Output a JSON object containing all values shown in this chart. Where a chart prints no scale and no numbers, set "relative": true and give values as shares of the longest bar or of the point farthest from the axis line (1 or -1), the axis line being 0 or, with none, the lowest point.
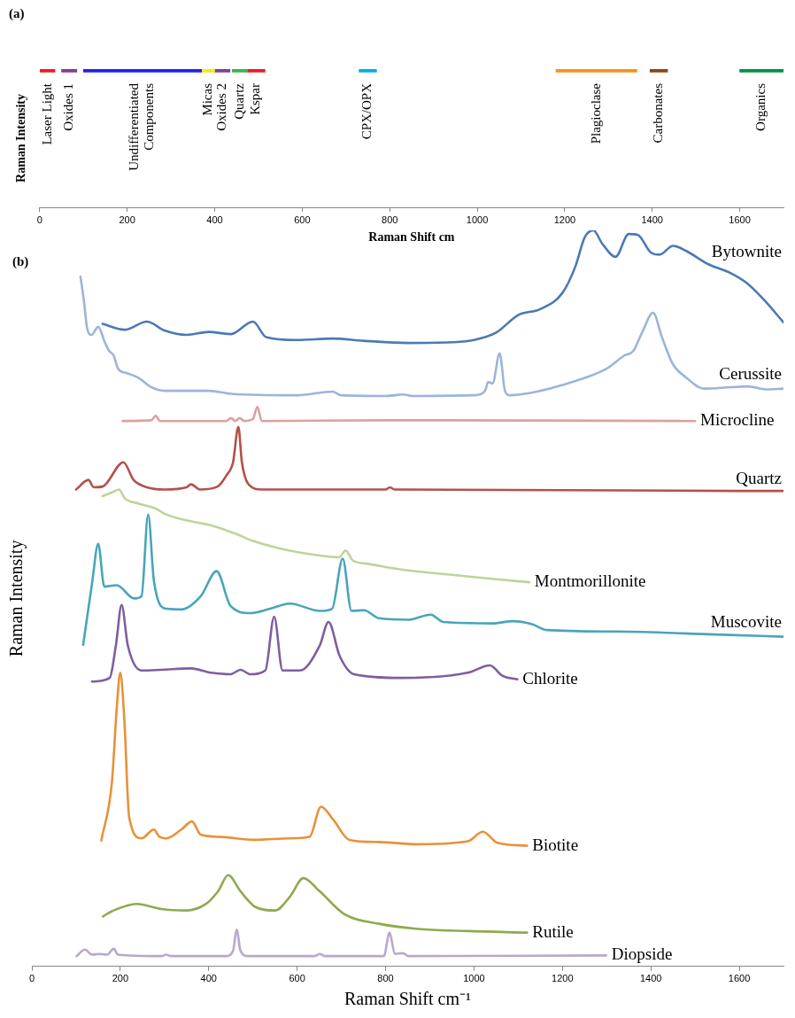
{
  "chart_data": [
    {
      "type": "bar",
      "orientation": "horizontal",
      "title": "(a)",
      "xlabel": "Raman Shift cm",
      "ylabel": "Raman Intensity",
      "xlim": [
        0,
        1700
      ],
      "xticks": [
        0,
        200,
        400,
        600,
        800,
        1000,
        1200,
        1400,
        1600
      ],
      "tick_labels": "x",
      "categories": [
        null
      ],
      "series": [
        {
          "name": "Laser Light",
          "color": "#ed1c24",
          "base": [
            0
          ],
          "values": [
            35
          ]
        },
        {
          "name": "Oxides 1",
          "color": "#7f3f98",
          "base": [
            50
          ],
          "values": [
            35
          ]
        },
        {
          "name": "Undifferentiated Components",
          "color": "#2121f0",
          "base": [
            100
          ],
          "values": [
            270
          ]
        },
        {
          "name": "Micas",
          "color": "#f7e811",
          "base": [
            370
          ],
          "values": [
            30
          ]
        },
        {
          "name": "Oxides 2",
          "color": "#7f3f98",
          "base": [
            400
          ],
          "values": [
            35
          ]
        },
        {
          "name": "Quartz",
          "color": "#39b54a",
          "base": [
            440
          ],
          "values": [
            35
          ]
        },
        {
          "name": "Kspar",
          "color": "#ed1c24",
          "base": [
            475
          ],
          "values": [
            40
          ]
        },
        {
          "name": "CPX/OPX",
          "color": "#00aeef",
          "base": [
            730
          ],
          "values": [
            40
          ]
        },
        {
          "name": "Plagioclase",
          "color": "#f7931e",
          "base": [
            1180
          ],
          "values": [
            185
          ]
        },
        {
          "name": "Carbonates",
          "color": "#8b4513",
          "base": [
            1395
          ],
          "values": [
            40
          ]
        },
        {
          "name": "Organics",
          "color": "#009245",
          "base": [
            1600
          ],
          "values": [
            100
          ]
        }
      ]
    },
    {
      "type": "line",
      "title": "(b)",
      "xlabel": "Raman Shift cm⁻¹",
      "ylabel": "Raman Intensity",
      "xlim": [
        0,
        1700
      ],
      "xticks": [
        0,
        200,
        400,
        600,
        800,
        1000,
        1200,
        1400,
        1600
      ],
      "relative": true,
      "series": [
        {
          "name": "Bytownite",
          "color": "#4a7ab5",
          "x": [
            160,
            210,
            260,
            300,
            350,
            400,
            450,
            500,
            530,
            600,
            680,
            750,
            850,
            950,
            1000,
            1050,
            1100,
            1150,
            1200,
            1230,
            1250,
            1270,
            1290,
            1320,
            1350,
            1370,
            1400,
            1420,
            1450,
            1480,
            1530,
            1580,
            1620,
            1660,
            1700
          ],
          "values": [
            0.873,
            0.865,
            0.876,
            0.864,
            0.858,
            0.862,
            0.859,
            0.876,
            0.855,
            0.851,
            0.853,
            0.85,
            0.847,
            0.848,
            0.851,
            0.861,
            0.885,
            0.893,
            0.915,
            0.952,
            0.99,
            1.0,
            0.982,
            0.964,
            0.995,
            0.994,
            0.97,
            0.967,
            0.979,
            0.972,
            0.954,
            0.942,
            0.927,
            0.903,
            0.875
          ]
        },
        {
          "name": "Cerussite",
          "color": "#9bb5da",
          "x": [
            110,
            118,
            125,
            135,
            150,
            165,
            175,
            185,
            195,
            215,
            240,
            270,
            300,
            400,
            450,
            600,
            680,
            700,
            800,
            840,
            860,
            1000,
            1025,
            1032,
            1042,
            1058,
            1070,
            1080,
            1150,
            1200,
            1300,
            1340,
            1360,
            1380,
            1405,
            1425,
            1450,
            1480,
            1520,
            1580,
            1620,
            1660,
            1700
          ],
          "values": [
            0.937,
            0.903,
            0.867,
            0.858,
            0.869,
            0.848,
            0.836,
            0.83,
            0.812,
            0.806,
            0.8,
            0.787,
            0.782,
            0.782,
            0.778,
            0.776,
            0.781,
            0.776,
            0.775,
            0.777,
            0.775,
            0.776,
            0.782,
            0.794,
            0.792,
            0.833,
            0.782,
            0.776,
            0.782,
            0.79,
            0.812,
            0.83,
            0.836,
            0.861,
            0.888,
            0.855,
            0.818,
            0.8,
            0.785,
            0.787,
            0.788,
            0.784,
            0.785
          ]
        },
        {
          "name": "Microcline",
          "color": "#dda0a0",
          "x": [
            205,
            270,
            280,
            290,
            440,
            450,
            460,
            470,
            480,
            500,
            510,
            520,
            800,
            1500
          ],
          "values": [
            0.741,
            0.742,
            0.748,
            0.741,
            0.741,
            0.745,
            0.741,
            0.745,
            0.741,
            0.744,
            0.76,
            0.741,
            0.742,
            0.741
          ]
        },
        {
          "name": "Quartz",
          "color": "#b5504a",
          "x": [
            100,
            128,
            140,
            160,
            207,
            230,
            260,
            300,
            350,
            360,
            380,
            420,
            440,
            455,
            467,
            475,
            490,
            520,
            800,
            810,
            820,
            1700
          ],
          "values": [
            0.648,
            0.661,
            0.651,
            0.652,
            0.685,
            0.661,
            0.651,
            0.648,
            0.651,
            0.655,
            0.648,
            0.652,
            0.667,
            0.685,
            0.733,
            0.685,
            0.655,
            0.648,
            0.648,
            0.651,
            0.648,
            0.646
          ]
        },
        {
          "name": "Montmorillonite",
          "color": "#bed49a",
          "x": [
            160,
            185,
            197,
            210,
            240,
            280,
            300,
            350,
            400,
            460,
            500,
            560,
            620,
            695,
            710,
            725,
            760,
            850,
            950,
            1050,
            1125
          ],
          "values": [
            0.639,
            0.645,
            0.648,
            0.636,
            0.629,
            0.622,
            0.615,
            0.606,
            0.6,
            0.588,
            0.578,
            0.568,
            0.561,
            0.556,
            0.565,
            0.552,
            0.547,
            0.538,
            0.532,
            0.526,
            0.522
          ]
        },
        {
          "name": "Muscovite",
          "color": "#48a5b9",
          "x": [
            116,
            136,
            150,
            164,
            192,
            231,
            248,
            263,
            276,
            304,
            338,
            382,
            418,
            449,
            494,
            539,
            584,
            651,
            679,
            703,
            723,
            751,
            785,
            852,
            902,
            930,
            1042,
            1087,
            1131,
            1165,
            1322,
            1545,
            1700
          ],
          "values": [
            0.437,
            0.52,
            0.574,
            0.516,
            0.518,
            0.5,
            0.503,
            0.614,
            0.524,
            0.486,
            0.485,
            0.503,
            0.537,
            0.49,
            0.48,
            0.486,
            0.493,
            0.483,
            0.486,
            0.554,
            0.483,
            0.484,
            0.473,
            0.471,
            0.478,
            0.468,
            0.466,
            0.469,
            0.465,
            0.457,
            0.455,
            0.451,
            0.448
          ]
        },
        {
          "name": "Chlorite",
          "color": "#7d5fa0",
          "x": [
            136,
            176,
            190,
            203,
            217,
            248,
            293,
            360,
            405,
            449,
            472,
            494,
            528,
            548,
            567,
            606,
            651,
            671,
            696,
            729,
            841,
            986,
            1036,
            1064,
            1098
          ],
          "values": [
            0.387,
            0.392,
            0.436,
            0.491,
            0.436,
            0.402,
            0.403,
            0.405,
            0.399,
            0.397,
            0.403,
            0.397,
            0.402,
            0.475,
            0.402,
            0.402,
            0.436,
            0.468,
            0.422,
            0.397,
            0.392,
            0.399,
            0.409,
            0.395,
            0.39
          ]
        },
        {
          "name": "Biotite",
          "color": "#e8913a",
          "x": [
            157,
            181,
            192,
            200,
            209,
            220,
            248,
            276,
            287,
            304,
            338,
            362,
            382,
            427,
            505,
            584,
            628,
            654,
            682,
            718,
            785,
            874,
            986,
            1020,
            1053,
            1120
          ],
          "values": [
            0.171,
            0.25,
            0.351,
            0.399,
            0.337,
            0.203,
            0.174,
            0.186,
            0.177,
            0.174,
            0.186,
            0.197,
            0.179,
            0.176,
            0.172,
            0.174,
            0.176,
            0.217,
            0.199,
            0.172,
            0.169,
            0.166,
            0.17,
            0.183,
            0.168,
            0.164
          ]
        },
        {
          "name": "Rutile",
          "color": "#8faa4f",
          "x": [
            161,
            181,
            237,
            293,
            349,
            394,
            421,
            444,
            472,
            505,
            550,
            584,
            614,
            651,
            707,
            785,
            874,
            986,
            1120
          ],
          "values": [
            0.068,
            0.075,
            0.085,
            0.078,
            0.076,
            0.085,
            0.102,
            0.124,
            0.102,
            0.081,
            0.076,
            0.095,
            0.12,
            0.102,
            0.071,
            0.058,
            0.051,
            0.048,
            0.046
          ]
        },
        {
          "name": "Diopside",
          "color": "#b8a8cc",
          "x": [
            101,
            120,
            136,
            153,
            170,
            185,
            195,
            293,
            304,
            315,
            438,
            455,
            463,
            472,
            489,
            640,
            651,
            662,
            796,
            809,
            821,
            839,
            852,
            1299
          ],
          "values": [
            0.014,
            0.023,
            0.016,
            0.017,
            0.016,
            0.024,
            0.016,
            0.014,
            0.016,
            0.014,
            0.014,
            0.021,
            0.05,
            0.021,
            0.014,
            0.014,
            0.017,
            0.014,
            0.014,
            0.046,
            0.017,
            0.018,
            0.014,
            0.015
          ]
        }
      ]
    }
  ]
}
